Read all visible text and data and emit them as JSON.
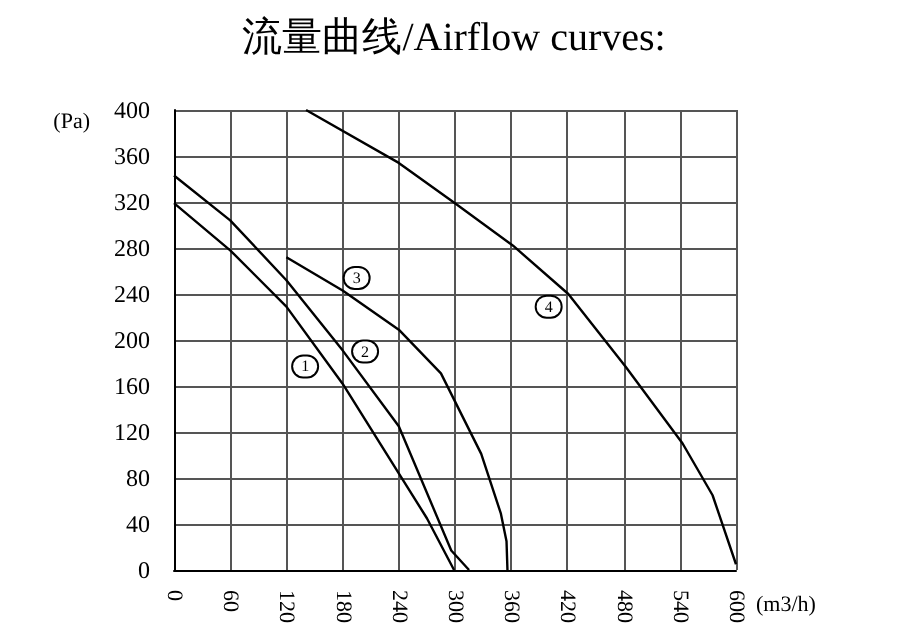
{
  "chart_data": {
    "type": "line",
    "title": "流量曲线/Airflow curves:",
    "xlabel": "(m3/h)",
    "ylabel": "(Pa)",
    "xlim": [
      0,
      600
    ],
    "xticks": [
      0,
      60,
      120,
      180,
      240,
      300,
      360,
      420,
      480,
      540,
      600
    ],
    "ylim": [
      0,
      400
    ],
    "yticks": [
      0,
      40,
      80,
      120,
      160,
      200,
      240,
      280,
      320,
      360,
      400
    ],
    "grid": true,
    "marker": "none",
    "line_style": "solid",
    "series": [
      {
        "color": "#000000",
        "x": [
          0,
          60,
          120,
          180,
          240,
          270,
          299
        ],
        "values": [
          319,
          278,
          229,
          162,
          84,
          45,
          0
        ]
      },
      {
        "color": "#000000",
        "x": [
          0,
          60,
          120,
          180,
          240,
          296,
          315
        ],
        "values": [
          343,
          304,
          252,
          191,
          125,
          17,
          0
        ]
      },
      {
        "color": "#000000",
        "x": [
          120,
          180,
          240,
          285,
          328,
          349,
          355,
          356
        ],
        "values": [
          272,
          243,
          209,
          171,
          101,
          49,
          25,
          0
        ]
      },
      {
        "color": "#000000",
        "x": [
          141,
          240,
          300,
          362,
          421,
          482,
          543,
          575,
          600
        ],
        "values": [
          400,
          354,
          319,
          282,
          240,
          177,
          110,
          65,
          5
        ]
      }
    ],
    "annotations": [
      {
        "text": "1",
        "x": 140,
        "y": 177
      },
      {
        "text": "2",
        "x": 204,
        "y": 190
      },
      {
        "text": "3",
        "x": 195,
        "y": 254
      },
      {
        "text": "4",
        "x": 400,
        "y": 229
      }
    ]
  }
}
